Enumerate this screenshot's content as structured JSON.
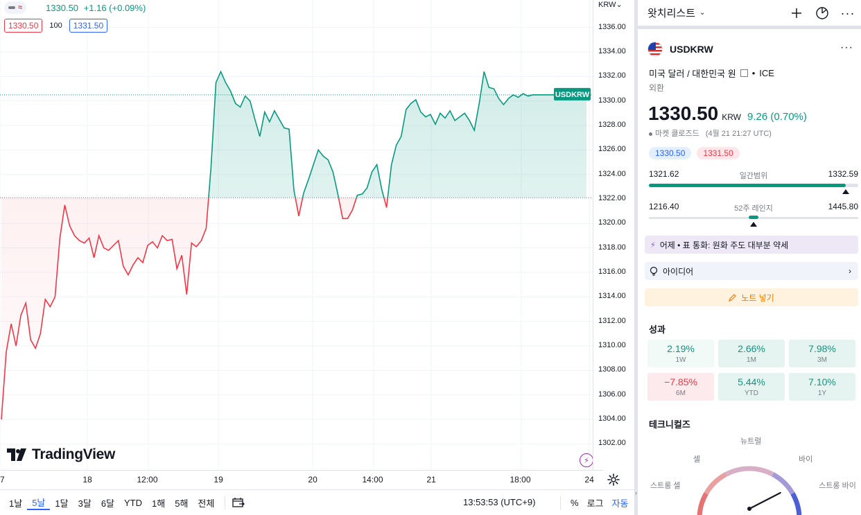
{
  "chart": {
    "legend": {
      "last": "1330.50",
      "change": "+1.16 (+0.09%)"
    },
    "bid": "1330.50",
    "spread": "100",
    "ask": "1331.50",
    "axis_currency": "KRW⌄",
    "price_ticks": [
      "1336.00",
      "1334.00",
      "1332.00",
      "1330.00",
      "1328.00",
      "1326.00",
      "1324.00",
      "1322.00",
      "1320.00",
      "1318.00",
      "1316.00",
      "1314.00",
      "1312.00",
      "1310.00",
      "1308.00",
      "1306.00",
      "1304.00",
      "1302.00"
    ],
    "time_labels": [
      "7",
      "18",
      "12:00",
      "19",
      "20",
      "14:00",
      "21",
      "18:00",
      "24"
    ],
    "symbol_tag": "USDKRW",
    "logo_text": "TradingView",
    "colors": {
      "up": "#089981",
      "down": "#f23645",
      "accent": "#2962ff"
    }
  },
  "chart_data": {
    "type": "area",
    "title": "USDKRW",
    "ylabel": "KRW",
    "ylim": [
      1301,
      1337
    ],
    "baseline": 1322.1,
    "x_ticks": [
      "7",
      "18",
      "12:00",
      "19",
      "20",
      "14:00",
      "21",
      "18:00",
      "24"
    ],
    "x": [
      0,
      1,
      2,
      3,
      4,
      5,
      6,
      7,
      8,
      9,
      10,
      11,
      12,
      13,
      14,
      15,
      16,
      17,
      18,
      19,
      20,
      21,
      22,
      23,
      24,
      25,
      26,
      27,
      28,
      29,
      30,
      31,
      32,
      33,
      34,
      35,
      36,
      37,
      38,
      39,
      40,
      41,
      42,
      43,
      44,
      45,
      46,
      47,
      48,
      49,
      50,
      51,
      52,
      53,
      54,
      55,
      56,
      57,
      58,
      59,
      60,
      61,
      62,
      63,
      64,
      65,
      66,
      67,
      68,
      69,
      70,
      71,
      72,
      73,
      74,
      75,
      76,
      77,
      78,
      79,
      80,
      81,
      82,
      83,
      84,
      85,
      86,
      87,
      88,
      89,
      90,
      91,
      92,
      93,
      94,
      95,
      96,
      97,
      98,
      99,
      100,
      101,
      102,
      103,
      104,
      105,
      106,
      107,
      108,
      109,
      110,
      111,
      112,
      113,
      114,
      115,
      116,
      117,
      118,
      119,
      120
    ],
    "values": [
      1304.0,
      1309.5,
      1311.8,
      1310.0,
      1312.5,
      1313.5,
      1310.5,
      1309.8,
      1311.0,
      1313.8,
      1313.2,
      1314.0,
      1318.8,
      1321.5,
      1319.8,
      1319.0,
      1318.6,
      1318.4,
      1318.8,
      1317.2,
      1319.0,
      1318.0,
      1317.8,
      1318.2,
      1318.6,
      1316.5,
      1315.8,
      1316.6,
      1317.2,
      1316.8,
      1318.2,
      1318.5,
      1318.0,
      1319.0,
      1318.6,
      1318.7,
      1316.3,
      1317.4,
      1314.2,
      1318.4,
      1318.1,
      1318.6,
      1319.6,
      1324.6,
      1331.5,
      1332.4,
      1331.5,
      1330.8,
      1329.8,
      1329.5,
      1330.4,
      1330.0,
      1328.5,
      1327.1,
      1329.1,
      1328.3,
      1329.2,
      1328.5,
      1327.8,
      1327.7,
      1322.7,
      1320.6,
      1322.5,
      1323.6,
      1324.8,
      1326.0,
      1325.5,
      1325.2,
      1324.2,
      1322.4,
      1320.4,
      1320.4,
      1321.1,
      1322.3,
      1322.4,
      1322.9,
      1324.2,
      1324.8,
      1322.8,
      1321.3,
      1324.8,
      1326.4,
      1327.1,
      1329.3,
      1329.8,
      1330.1,
      1329.1,
      1328.7,
      1328.9,
      1328.1,
      1329.0,
      1328.6,
      1329.2,
      1328.4,
      1328.7,
      1329.0,
      1328.4,
      1327.6,
      1329.8,
      1332.4,
      1331.1,
      1331.0,
      1330.2,
      1329.7,
      1330.2,
      1330.5,
      1330.3,
      1330.6,
      1330.4,
      1330.5,
      1330.5,
      1330.5,
      1330.5,
      1330.5,
      1330.5,
      1330.5,
      1330.5,
      1330.5,
      1330.5,
      1330.5,
      1330.5
    ]
  },
  "bottom_bar": {
    "ranges": [
      "1날",
      "5날",
      "1달",
      "3달",
      "6달",
      "YTD",
      "1해",
      "5해",
      "전체"
    ],
    "active_range": "5날",
    "clock": "13:53:53 (UTC+9)",
    "percent": "%",
    "log": "로그",
    "auto": "자동"
  },
  "watchlist": {
    "title": "왓치리스트",
    "symbol": "USDKRW",
    "desc_name": "미국 달러 / 대한민국 원",
    "exchange": "ICE",
    "type": "외환",
    "price": "1330.50",
    "currency": "KRW",
    "change": "9.26 (0.70%)",
    "market_status": "마켓 클로즈드",
    "market_time": "(4월 21 21:27 UTC)",
    "bid": "1330.50",
    "ask": "1331.50",
    "day_range": {
      "low": "1321.62",
      "label": "일간범위",
      "high": "1332.59",
      "position": 0.94
    },
    "year_range": {
      "low": "1216.40",
      "label": "52주 레인지",
      "high": "1445.80",
      "position": 0.5
    },
    "news": "어제 • 표 통화: 원화 주도 대부분 약세",
    "ideas": "아이디어",
    "note": "노트 넣기",
    "perf_title": "성과",
    "performance": [
      {
        "value": "2.19%",
        "label": "1W"
      },
      {
        "value": "2.66%",
        "label": "1M"
      },
      {
        "value": "7.98%",
        "label": "3M"
      },
      {
        "value": "−7.85%",
        "label": "6M"
      },
      {
        "value": "5.44%",
        "label": "YTD"
      },
      {
        "value": "7.10%",
        "label": "1Y"
      }
    ],
    "tech_title": "테크니컬즈",
    "gauge": {
      "neutral": "뉴트럴",
      "sell": "셀",
      "buy": "바이",
      "strong_sell": "스트롱 셀",
      "strong_buy": "스트롱 바이",
      "reading": 0.78
    }
  }
}
